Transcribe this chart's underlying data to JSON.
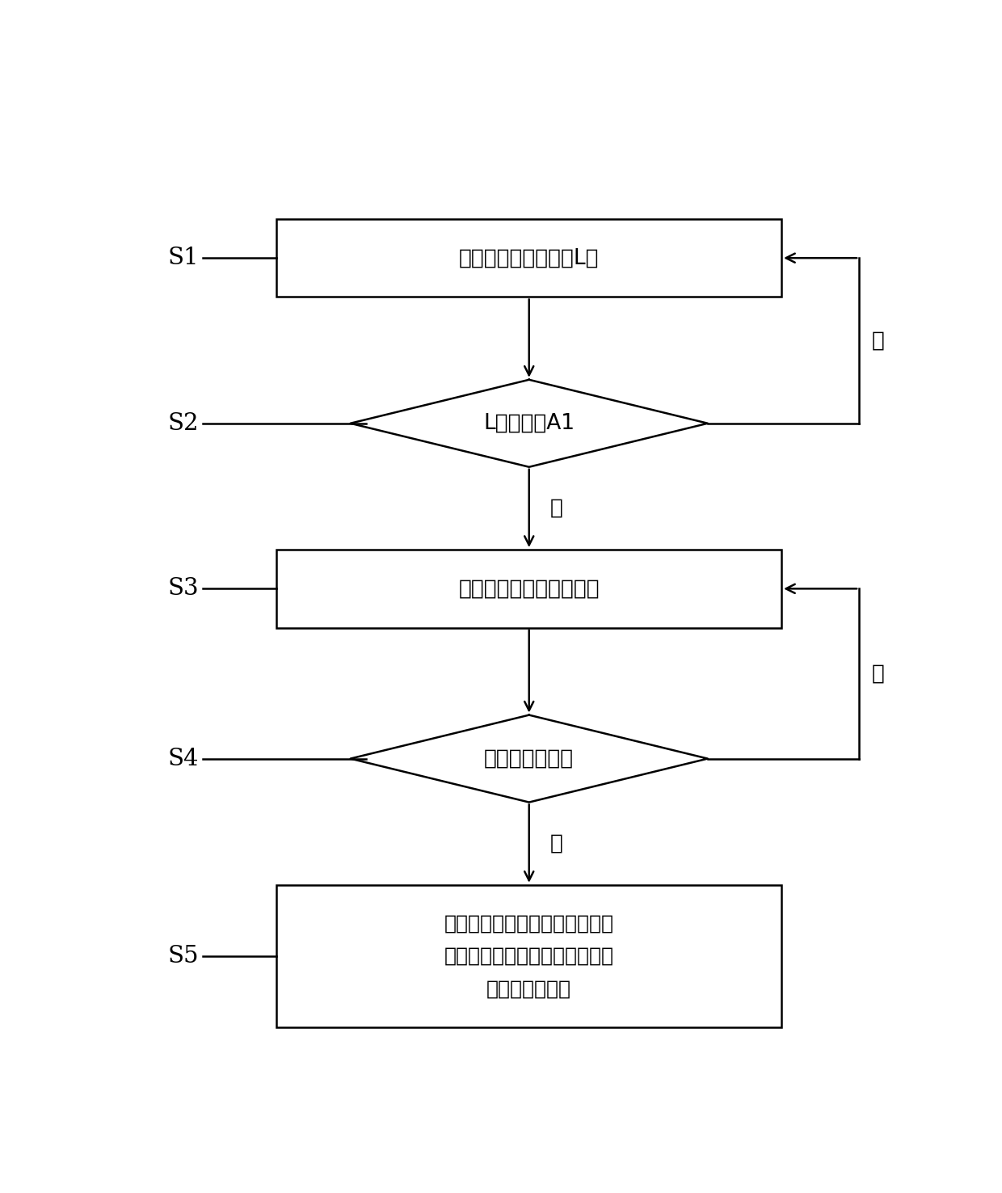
{
  "bg_color": "#ffffff",
  "border_color": "#000000",
  "arrow_color": "#000000",
  "text_color": "#000000",
  "step_labels": [
    "S1",
    "S2",
    "S3",
    "S4",
    "S5"
  ],
  "box1_text": "获取车辆的跟车车距L；",
  "diamond2_text": "L是否小于A1",
  "box3_text": "限制发动机的输出动力；",
  "diamond4_text": "是否有换档请求",
  "box5_line1": "换档前冻结当前扭矩输出作为第",
  "box5_line2": "一冻结扭矩，换挡后直接恢复至",
  "box5_line3": "第一冻结扭矩。",
  "yes_label": "是",
  "no_label": "否",
  "figsize": [
    12.4,
    14.76
  ],
  "dpi": 100,
  "lw": 1.8
}
